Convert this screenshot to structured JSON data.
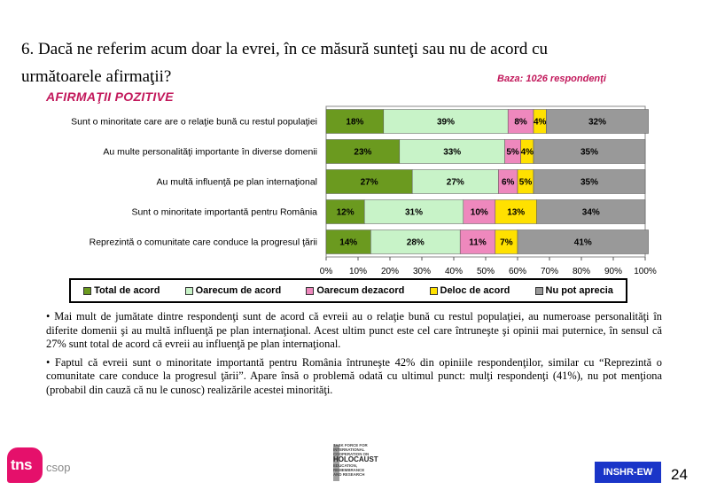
{
  "question": "6. Dacă ne referim acum doar la evrei, în ce măsură sunteţi sau nu de acord cu următoarele afirmaţii?",
  "base_label": "Baza: 1026 respondenţi",
  "section_title": "AFIRMAŢII POZITIVE",
  "chart_data": {
    "type": "bar",
    "orientation": "horizontal",
    "stacked": true,
    "categories": [
      "Sunt o minoritate care are o relaţie bună cu restul populaţiei",
      "Au multe personalităţi importante în diverse domenii",
      "Au multă influenţă pe plan internaţional",
      "Sunt o minoritate importantă pentru România",
      "Reprezintă o comunitate care conduce la progresul ţării"
    ],
    "series": [
      {
        "name": "Total de acord",
        "color": "#6b9a1f",
        "values": [
          18,
          23,
          27,
          12,
          14
        ]
      },
      {
        "name": "Oarecum de acord",
        "color": "#c8f3c8",
        "values": [
          39,
          33,
          27,
          31,
          28
        ]
      },
      {
        "name": "Oarecum dezacord",
        "color": "#ee88bd",
        "values": [
          8,
          5,
          6,
          10,
          11
        ]
      },
      {
        "name": "Deloc de acord",
        "color": "#ffe100",
        "values": [
          4,
          4,
          5,
          13,
          7
        ]
      },
      {
        "name": "Nu pot aprecia",
        "color": "#999999",
        "values": [
          32,
          35,
          35,
          34,
          41
        ]
      }
    ],
    "value_suffix": "%",
    "xlim": [
      0,
      100
    ],
    "x_ticks": [
      "0%",
      "10%",
      "20%",
      "30%",
      "40%",
      "50%",
      "60%",
      "70%",
      "80%",
      "90%",
      "100%"
    ],
    "legend_position": "bottom"
  },
  "notes": [
    "• Mai mult de jumătate dintre respondenţi sunt de acord că evreii au o relaţie bună cu restul populaţiei, au numeroase personalităţi în diferite domenii şi au multă influenţă pe plan internaţional. Acest ultim punct este cel care întruneşte şi opinii mai puternice, în sensul că 27% sunt total de acord că evreii au influenţă pe plan internaţional.",
    "• Faptul că evreii sunt o minoritate importantă pentru România întruneşte 42% din opiniile respondenţilor, similar cu “Reprezintă o comunitate care conduce la progresul ţării”. Apare însă o problemă odată cu ultimul punct: mulţi respondenţi (41%), nu pot menţiona (probabil din cauză că nu le cunosc) realizările acestei minorităţi."
  ],
  "footer": {
    "brand_main": "tns",
    "brand_sub": "csop",
    "tf_logo_lines": [
      "TASK FORCE FOR",
      "INTERNATIONAL",
      "COOPERATION ON"
    ],
    "tf_logo_big": "HOLOCAUST",
    "tf_logo_lines2": [
      "EDUCATION,",
      "REMEMBRANCE",
      "AND RESEARCH"
    ],
    "badge": "INSHR-EW",
    "page_number": "24"
  }
}
